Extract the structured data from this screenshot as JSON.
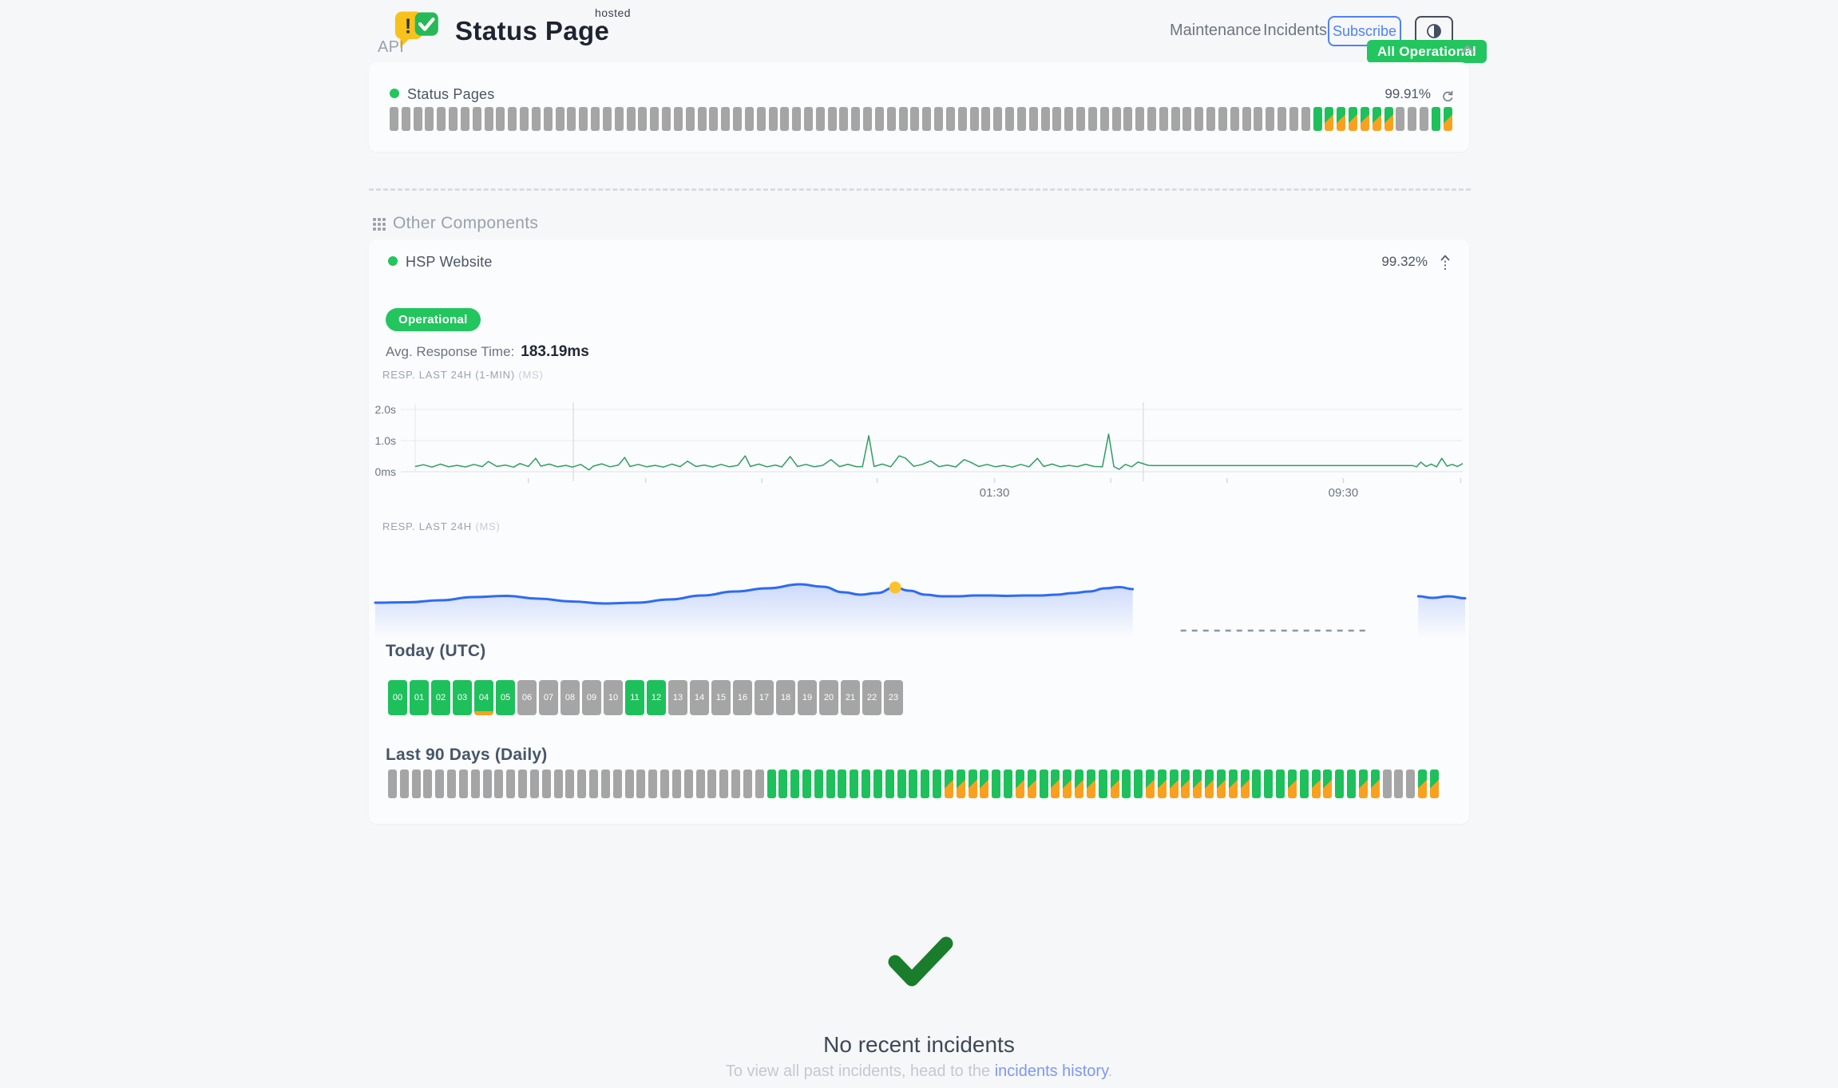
{
  "header": {
    "brand": {
      "title": "Status Page",
      "superscript": "hosted"
    },
    "nav": [
      {
        "label": "Maintenance"
      },
      {
        "label": "Incidents"
      }
    ],
    "subscribe_label": "Subscribe",
    "overall_status": {
      "label": "All Operational",
      "color": "#22c55e"
    }
  },
  "api_group": {
    "title": "API",
    "component": {
      "name": "Status Pages",
      "uptime": "99.91%",
      "bars": "NNNNNNNNNNNNNNNNNNNNNNNNNNNNNNNNNNNNNNNNNNNNNNNNNNNNNNNNNNNNNNNNNNNNNNNNNNNNNNUDDDDDDNNNUD"
    }
  },
  "other_components": {
    "title": "Other Components",
    "component": {
      "name": "HSP Website",
      "uptime": "99.32%",
      "status_badge": "Operational",
      "avg_response": {
        "label": "Avg. Response Time:",
        "value": "183.19ms"
      },
      "chart1_label": {
        "text": "RESP. LAST 24H (1-MIN)",
        "unit": "(MS)"
      },
      "chart2_label": {
        "text": "RESP. LAST 24H",
        "unit": "(MS)"
      },
      "today": {
        "title": "Today (UTC)",
        "hours": [
          {
            "label": "00",
            "status": "up"
          },
          {
            "label": "01",
            "status": "up"
          },
          {
            "label": "02",
            "status": "up"
          },
          {
            "label": "03",
            "status": "up"
          },
          {
            "label": "04",
            "status": "up_partial"
          },
          {
            "label": "05",
            "status": "up"
          },
          {
            "label": "06",
            "status": "none"
          },
          {
            "label": "07",
            "status": "none"
          },
          {
            "label": "08",
            "status": "none"
          },
          {
            "label": "09",
            "status": "none"
          },
          {
            "label": "10",
            "status": "none"
          },
          {
            "label": "11",
            "status": "up"
          },
          {
            "label": "12",
            "status": "up"
          },
          {
            "label": "13",
            "status": "none"
          },
          {
            "label": "14",
            "status": "none"
          },
          {
            "label": "15",
            "status": "none"
          },
          {
            "label": "16",
            "status": "none"
          },
          {
            "label": "17",
            "status": "none"
          },
          {
            "label": "18",
            "status": "none"
          },
          {
            "label": "19",
            "status": "none"
          },
          {
            "label": "20",
            "status": "none"
          },
          {
            "label": "21",
            "status": "none"
          },
          {
            "label": "22",
            "status": "none"
          },
          {
            "label": "23",
            "status": "none"
          }
        ]
      },
      "last90": {
        "title": "Last 90 Days (Daily)",
        "bars": "NNNNNNNNNNNNNNNNNNNNNNNNNNNNNNNNUUUUUUUUUUUUUUUDDDDUUDDUDDDDUDUUDDDDDDDDDUUUDUDDUUDDNNNDD"
      }
    }
  },
  "bar_legend": {
    "N": "no-data (gray)",
    "U": "operational (green)",
    "D": "degraded (green/orange)"
  },
  "icons": {
    "refresh": "circular-arrow",
    "collapse": "chevron-up",
    "expand_component": "arrow-up-dotted",
    "theme_toggle": "half-filled-circle",
    "other_components": "grid-of-dots",
    "no_incidents": "checkmark"
  },
  "colors": {
    "green": "#1ec05b",
    "orange": "#f9a11f",
    "gray_bar": "#a5a5a5",
    "chart_line_green": "#2f9e62",
    "chart_line_blue": "#2e6bf0",
    "marker_yellow": "#fcc22d",
    "link_blue": "#7d97f6",
    "subscribe_blue": "#4f82f7",
    "check_green": "#1a7d2c"
  },
  "incidents_footer": {
    "title": "No recent incidents",
    "text_prefix": "To view all past incidents, head to the ",
    "link_label": "incidents history",
    "text_suffix": "."
  },
  "chart_data": [
    {
      "type": "line",
      "title": "RESP. LAST 24H (1-MIN)",
      "unit": "ms",
      "ylim": [
        0,
        2000
      ],
      "yticks": [
        {
          "label": "2.0s",
          "ms": 2000
        },
        {
          "label": "1.0s",
          "ms": 1000
        },
        {
          "label": "0ms",
          "ms": 0
        }
      ],
      "xticks": [
        {
          "x": 0.108
        },
        {
          "x": 0.22
        },
        {
          "x": 0.331
        },
        {
          "x": 0.441
        },
        {
          "x": 0.553,
          "label": "01:30"
        },
        {
          "x": 0.664
        },
        {
          "x": 0.775
        },
        {
          "x": 0.886,
          "label": "09:30"
        },
        {
          "x": 0.998
        }
      ],
      "day_separators_x": [
        0.151,
        0.695
      ],
      "series": [
        {
          "name": "response_ms",
          "points": [
            [
              0,
              170
            ],
            [
              0.008,
              225
            ],
            [
              0.016,
              150
            ],
            [
              0.024,
              245
            ],
            [
              0.032,
              160
            ],
            [
              0.04,
              205
            ],
            [
              0.048,
              155
            ],
            [
              0.056,
              235
            ],
            [
              0.064,
              165
            ],
            [
              0.07,
              330
            ],
            [
              0.078,
              170
            ],
            [
              0.086,
              215
            ],
            [
              0.094,
              150
            ],
            [
              0.1,
              265
            ],
            [
              0.108,
              170
            ],
            [
              0.115,
              430
            ],
            [
              0.12,
              180
            ],
            [
              0.128,
              245
            ],
            [
              0.136,
              160
            ],
            [
              0.144,
              205
            ],
            [
              0.15,
              150
            ],
            [
              0.158,
              235
            ],
            [
              0.166,
              60
            ],
            [
              0.17,
              180
            ],
            [
              0.178,
              255
            ],
            [
              0.186,
              160
            ],
            [
              0.194,
              215
            ],
            [
              0.2,
              460
            ],
            [
              0.205,
              170
            ],
            [
              0.213,
              235
            ],
            [
              0.221,
              160
            ],
            [
              0.229,
              205
            ],
            [
              0.237,
              150
            ],
            [
              0.245,
              245
            ],
            [
              0.253,
              165
            ],
            [
              0.26,
              340
            ],
            [
              0.268,
              170
            ],
            [
              0.276,
              215
            ],
            [
              0.284,
              155
            ],
            [
              0.292,
              235
            ],
            [
              0.3,
              160
            ],
            [
              0.308,
              205
            ],
            [
              0.315,
              510
            ],
            [
              0.32,
              170
            ],
            [
              0.328,
              245
            ],
            [
              0.336,
              160
            ],
            [
              0.344,
              215
            ],
            [
              0.35,
              155
            ],
            [
              0.358,
              490
            ],
            [
              0.365,
              170
            ],
            [
              0.373,
              235
            ],
            [
              0.381,
              160
            ],
            [
              0.389,
              205
            ],
            [
              0.397,
              390
            ],
            [
              0.405,
              165
            ],
            [
              0.413,
              240
            ],
            [
              0.421,
              165
            ],
            [
              0.427,
              165
            ],
            [
              0.433,
              1160
            ],
            [
              0.438,
              170
            ],
            [
              0.446,
              245
            ],
            [
              0.454,
              160
            ],
            [
              0.462,
              510
            ],
            [
              0.468,
              440
            ],
            [
              0.476,
              175
            ],
            [
              0.484,
              235
            ],
            [
              0.492,
              350
            ],
            [
              0.5,
              165
            ],
            [
              0.508,
              215
            ],
            [
              0.516,
              155
            ],
            [
              0.524,
              390
            ],
            [
              0.53,
              310
            ],
            [
              0.538,
              170
            ],
            [
              0.546,
              235
            ],
            [
              0.554,
              160
            ],
            [
              0.562,
              205
            ],
            [
              0.57,
              150
            ],
            [
              0.578,
              235
            ],
            [
              0.586,
              160
            ],
            [
              0.594,
              430
            ],
            [
              0.6,
              170
            ],
            [
              0.608,
              245
            ],
            [
              0.616,
              160
            ],
            [
              0.624,
              205
            ],
            [
              0.632,
              165
            ],
            [
              0.64,
              240
            ],
            [
              0.648,
              170
            ],
            [
              0.656,
              160
            ],
            [
              0.662,
              1210
            ],
            [
              0.667,
              165
            ],
            [
              0.672,
              80
            ],
            [
              0.678,
              235
            ],
            [
              0.684,
              160
            ],
            [
              0.69,
              310
            ],
            [
              0.7,
              205
            ],
            [
              0.705,
              200
            ],
            [
              0.75,
              200
            ],
            [
              0.8,
              200
            ],
            [
              0.85,
              200
            ],
            [
              0.9,
              200
            ],
            [
              0.94,
              200
            ],
            [
              0.952,
              200
            ],
            [
              0.956,
              160
            ],
            [
              0.96,
              310
            ],
            [
              0.965,
              170
            ],
            [
              0.97,
              245
            ],
            [
              0.975,
              160
            ],
            [
              0.98,
              430
            ],
            [
              0.985,
              180
            ],
            [
              0.99,
              235
            ],
            [
              0.995,
              170
            ],
            [
              1,
              265
            ]
          ]
        }
      ]
    },
    {
      "type": "area",
      "title": "RESP. LAST 24H",
      "unit": "ms",
      "segments": [
        {
          "points": [
            [
              0,
              160
            ],
            [
              0.03,
              161
            ],
            [
              0.06,
              166
            ],
            [
              0.09,
              174
            ],
            [
              0.12,
              177
            ],
            [
              0.15,
              170
            ],
            [
              0.18,
              163
            ],
            [
              0.21,
              158
            ],
            [
              0.24,
              160
            ],
            [
              0.27,
              168
            ],
            [
              0.3,
              178
            ],
            [
              0.33,
              188
            ],
            [
              0.36,
              196
            ],
            [
              0.39,
              206
            ],
            [
              0.41,
              200
            ],
            [
              0.43,
              186
            ],
            [
              0.445,
              180
            ],
            [
              0.46,
              184
            ],
            [
              0.477,
              198
            ],
            [
              0.49,
              190
            ],
            [
              0.505,
              180
            ],
            [
              0.52,
              176
            ],
            [
              0.535,
              176
            ],
            [
              0.55,
              178
            ],
            [
              0.565,
              178
            ],
            [
              0.58,
              177
            ],
            [
              0.595,
              178
            ],
            [
              0.61,
              178
            ],
            [
              0.625,
              180
            ],
            [
              0.64,
              184
            ],
            [
              0.655,
              188
            ],
            [
              0.67,
              196
            ],
            [
              0.683,
              199
            ],
            [
              0.695,
              194
            ]
          ]
        },
        {
          "points": [
            [
              0.957,
              176
            ],
            [
              0.97,
              172
            ],
            [
              0.985,
              176
            ],
            [
              1,
              171
            ]
          ]
        }
      ],
      "marker": {
        "x": 0.477,
        "ms": 198
      },
      "no_data_dash": {
        "from": 0.739,
        "to": 0.911
      }
    }
  ]
}
